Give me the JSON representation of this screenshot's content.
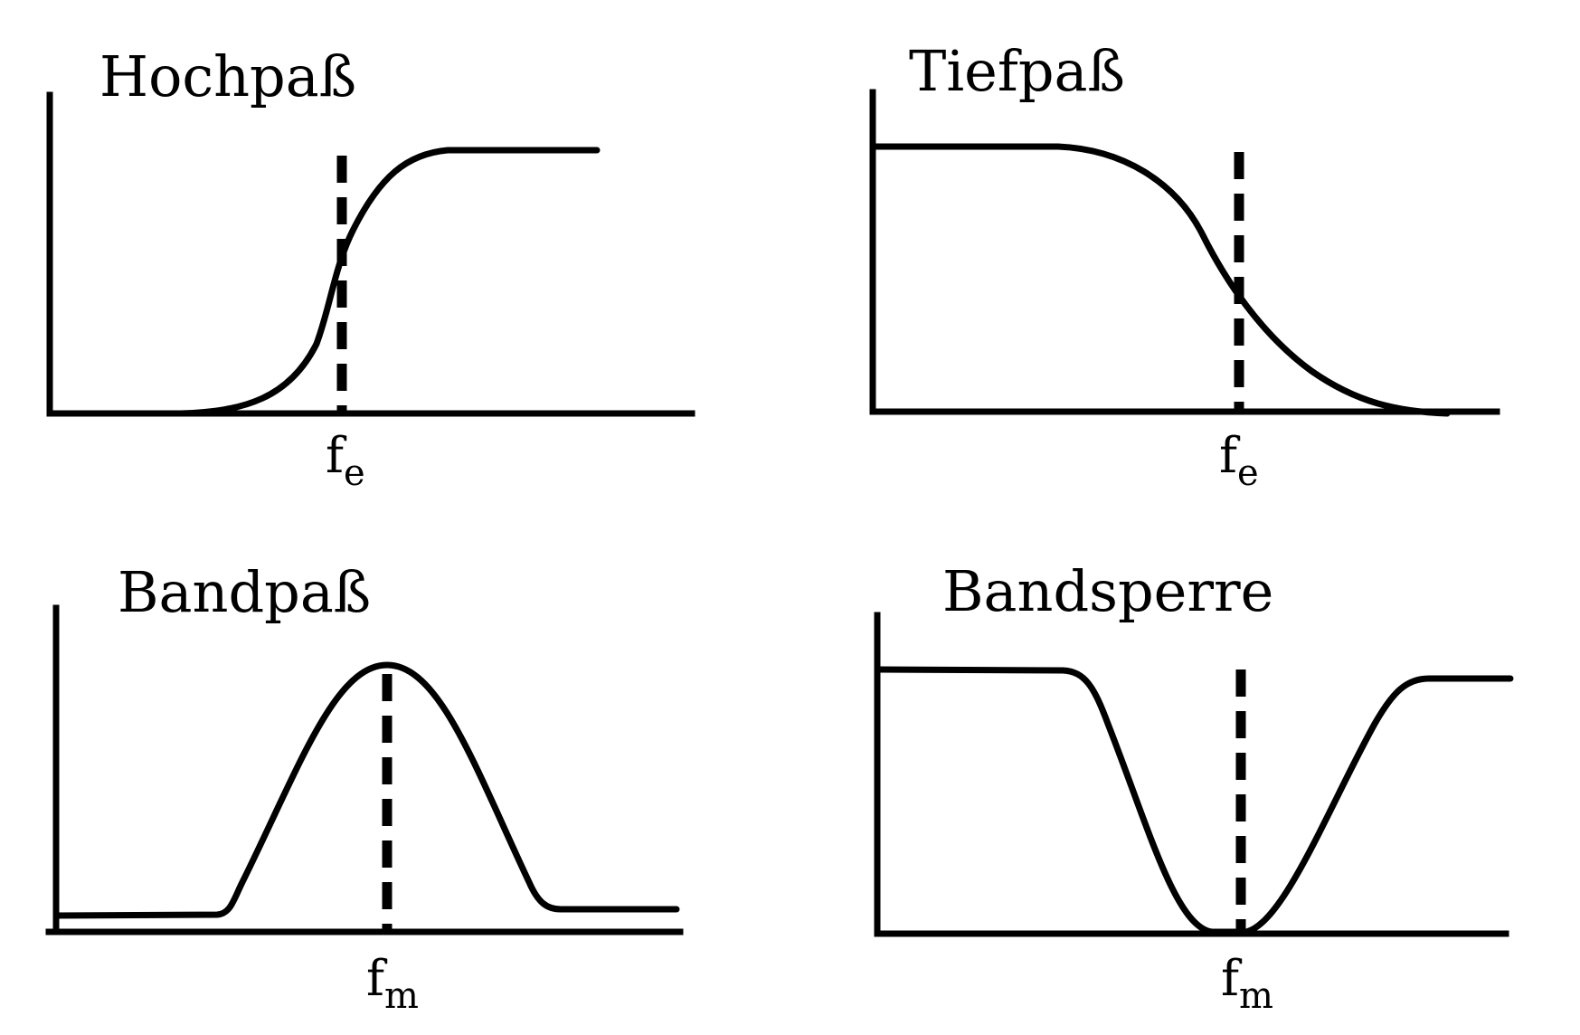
{
  "panels": [
    {
      "title": "Hochpaß",
      "frequency_label": {
        "main": "f",
        "sub": "e"
      }
    },
    {
      "title": "Tiefpaß",
      "frequency_label": {
        "main": "f",
        "sub": "e"
      }
    },
    {
      "title": "Bandpaß",
      "frequency_label": {
        "main": "f",
        "sub": "m"
      }
    },
    {
      "title": "Bandsperre",
      "frequency_label": {
        "main": "f",
        "sub": "m"
      }
    }
  ]
}
